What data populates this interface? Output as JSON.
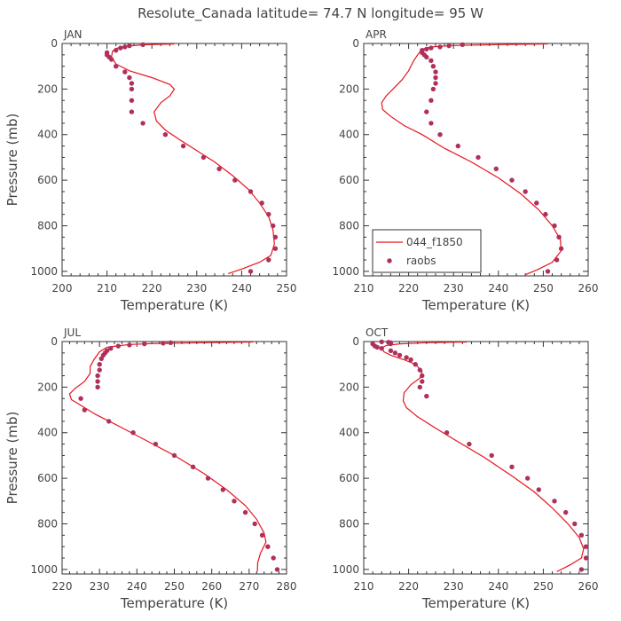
{
  "title": "Resolute_Canada  latitude= 74.7 N longitude= 95 W",
  "colors": {
    "model": "#e8141c",
    "obs": "#b0305c",
    "axes": "#333333",
    "text": "#444444"
  },
  "legend": {
    "model_label": "044_f1850",
    "obs_label": "raobs"
  },
  "chart_data": [
    {
      "type": "line",
      "panel": "JAN",
      "xlabel": "Temperature (K)",
      "ylabel": "Pressure (mb)",
      "xlim": [
        200,
        250
      ],
      "ylim": [
        1020,
        0
      ],
      "xticks": [
        200,
        210,
        220,
        230,
        240,
        250
      ],
      "yticks": [
        0,
        200,
        400,
        600,
        800,
        1000
      ],
      "series": [
        {
          "name": "044_f1850",
          "style": "line",
          "points": [
            [
              225,
              2
            ],
            [
              218,
              6
            ],
            [
              214,
              12
            ],
            [
              212,
              22
            ],
            [
              211.2,
              35
            ],
            [
              211,
              60
            ],
            [
              212,
              90
            ],
            [
              215,
              120
            ],
            [
              220,
              150
            ],
            [
              224,
              180
            ],
            [
              225,
              200
            ],
            [
              224,
              230
            ],
            [
              222,
              260
            ],
            [
              220.5,
              300
            ],
            [
              221,
              340
            ],
            [
              223,
              380
            ],
            [
              226,
              420
            ],
            [
              230,
              470
            ],
            [
              234,
              520
            ],
            [
              238,
              580
            ],
            [
              241.5,
              640
            ],
            [
              244,
              700
            ],
            [
              246,
              760
            ],
            [
              247,
              820
            ],
            [
              247.3,
              880
            ],
            [
              246.5,
              930
            ],
            [
              244,
              960
            ],
            [
              240,
              990
            ],
            [
              237,
              1010
            ]
          ]
        },
        {
          "name": "raobs",
          "style": "marker",
          "points": [
            [
              218,
              5
            ],
            [
              215,
              10
            ],
            [
              214,
              15
            ],
            [
              213,
              20
            ],
            [
              212,
              30
            ],
            [
              210,
              50
            ],
            [
              210,
              40
            ],
            [
              210.5,
              60
            ],
            [
              211,
              70
            ],
            [
              212,
              100
            ],
            [
              214,
              125
            ],
            [
              215,
              150
            ],
            [
              215.5,
              175
            ],
            [
              215.5,
              200
            ],
            [
              215.5,
              250
            ],
            [
              215.5,
              300
            ],
            [
              218,
              350
            ],
            [
              223,
              400
            ],
            [
              227,
              450
            ],
            [
              231.5,
              500
            ],
            [
              235,
              550
            ],
            [
              238.5,
              600
            ],
            [
              242,
              650
            ],
            [
              244.5,
              700
            ],
            [
              246,
              750
            ],
            [
              247,
              800
            ],
            [
              247.5,
              850
            ],
            [
              247.5,
              900
            ],
            [
              246,
              950
            ],
            [
              242,
              1000
            ]
          ]
        }
      ]
    },
    {
      "type": "line",
      "panel": "APR",
      "xlabel": "Temperature (K)",
      "ylabel": "",
      "xlim": [
        210,
        260
      ],
      "ylim": [
        1020,
        0
      ],
      "xticks": [
        210,
        220,
        230,
        240,
        250,
        260
      ],
      "yticks": [
        0,
        200,
        400,
        600,
        800,
        1000
      ],
      "legend": "lower-left",
      "series": [
        {
          "name": "044_f1850",
          "style": "line",
          "points": [
            [
              251,
              2
            ],
            [
              240,
              5
            ],
            [
              230,
              9
            ],
            [
              225,
              15
            ],
            [
              223,
              25
            ],
            [
              222,
              50
            ],
            [
              221,
              80
            ],
            [
              220,
              120
            ],
            [
              218.5,
              160
            ],
            [
              216.5,
              200
            ],
            [
              215,
              230
            ],
            [
              214,
              260
            ],
            [
              214.2,
              290
            ],
            [
              216,
              320
            ],
            [
              219,
              360
            ],
            [
              223,
              400
            ],
            [
              228,
              460
            ],
            [
              234,
              520
            ],
            [
              240,
              590
            ],
            [
              245,
              660
            ],
            [
              249,
              730
            ],
            [
              252,
              800
            ],
            [
              253.8,
              860
            ],
            [
              254,
              910
            ],
            [
              252,
              960
            ],
            [
              249,
              990
            ],
            [
              246,
              1015
            ]
          ]
        },
        {
          "name": "raobs",
          "style": "marker",
          "points": [
            [
              232,
              5
            ],
            [
              229,
              10
            ],
            [
              227,
              15
            ],
            [
              225,
              20
            ],
            [
              224,
              25
            ],
            [
              223,
              30
            ],
            [
              223,
              40
            ],
            [
              223.5,
              50
            ],
            [
              224,
              60
            ],
            [
              225,
              75
            ],
            [
              225.5,
              100
            ],
            [
              226,
              125
            ],
            [
              226,
              150
            ],
            [
              226,
              175
            ],
            [
              225.5,
              200
            ],
            [
              225,
              250
            ],
            [
              225,
              350
            ],
            [
              224,
              300
            ],
            [
              227,
              400
            ],
            [
              231,
              450
            ],
            [
              235.5,
              500
            ],
            [
              239.5,
              550
            ],
            [
              243,
              600
            ],
            [
              246,
              650
            ],
            [
              248.5,
              700
            ],
            [
              250.5,
              750
            ],
            [
              252.5,
              800
            ],
            [
              253.5,
              850
            ],
            [
              254,
              900
            ],
            [
              253,
              950
            ],
            [
              251,
              1000
            ]
          ]
        }
      ]
    },
    {
      "type": "line",
      "panel": "JUL",
      "xlabel": "Temperature (K)",
      "ylabel": "Pressure (mb)",
      "xlim": [
        220,
        280
      ],
      "ylim": [
        1020,
        0
      ],
      "xticks": [
        220,
        230,
        240,
        250,
        260,
        270,
        280
      ],
      "yticks": [
        0,
        200,
        400,
        600,
        800,
        1000
      ],
      "series": [
        {
          "name": "044_f1850",
          "style": "line",
          "points": [
            [
              271,
              2
            ],
            [
              258,
              5
            ],
            [
              245,
              8
            ],
            [
              238,
              13
            ],
            [
              232,
              25
            ],
            [
              230,
              45
            ],
            [
              228.5,
              80
            ],
            [
              227.5,
              110
            ],
            [
              227.5,
              140
            ],
            [
              226,
              175
            ],
            [
              223.5,
              205
            ],
            [
              222,
              230
            ],
            [
              222.5,
              255
            ],
            [
              225,
              280
            ],
            [
              229,
              320
            ],
            [
              235,
              370
            ],
            [
              242,
              430
            ],
            [
              250,
              500
            ],
            [
              258,
              580
            ],
            [
              264,
              650
            ],
            [
              269,
              720
            ],
            [
              272,
              780
            ],
            [
              274,
              840
            ],
            [
              274.5,
              880
            ],
            [
              273,
              930
            ],
            [
              272.3,
              970
            ],
            [
              272.2,
              1010
            ]
          ]
        },
        {
          "name": "raobs",
          "style": "marker",
          "points": [
            [
              249,
              5
            ],
            [
              247,
              7
            ],
            [
              242,
              10
            ],
            [
              238,
              15
            ],
            [
              235,
              20
            ],
            [
              233,
              30
            ],
            [
              232,
              40
            ],
            [
              231.5,
              50
            ],
            [
              231,
              60
            ],
            [
              230.5,
              75
            ],
            [
              230,
              100
            ],
            [
              230,
              125
            ],
            [
              229.5,
              150
            ],
            [
              229.5,
              175
            ],
            [
              229.5,
              200
            ],
            [
              225,
              250
            ],
            [
              226,
              300
            ],
            [
              232.5,
              350
            ],
            [
              239,
              400
            ],
            [
              245,
              450
            ],
            [
              250,
              500
            ],
            [
              255,
              550
            ],
            [
              259,
              600
            ],
            [
              263,
              650
            ],
            [
              266,
              700
            ],
            [
              269,
              750
            ],
            [
              271.5,
              800
            ],
            [
              273.5,
              850
            ],
            [
              275,
              900
            ],
            [
              276.5,
              950
            ],
            [
              277.5,
              1000
            ]
          ]
        }
      ]
    },
    {
      "type": "line",
      "panel": "OCT",
      "xlabel": "Temperature (K)",
      "ylabel": "",
      "xlim": [
        210,
        260
      ],
      "ylim": [
        1020,
        0
      ],
      "xticks": [
        210,
        220,
        230,
        240,
        250,
        260
      ],
      "yticks": [
        0,
        200,
        400,
        600,
        800,
        1000
      ],
      "series": [
        {
          "name": "044_f1850",
          "style": "line",
          "points": [
            [
              233,
              2
            ],
            [
              224,
              5
            ],
            [
              218,
              10
            ],
            [
              215,
              17
            ],
            [
              214,
              28
            ],
            [
              214.5,
              45
            ],
            [
              216,
              60
            ],
            [
              219,
              80
            ],
            [
              221.5,
              100
            ],
            [
              223,
              130
            ],
            [
              222.5,
              160
            ],
            [
              220.5,
              190
            ],
            [
              219,
              225
            ],
            [
              218.8,
              260
            ],
            [
              219.5,
              290
            ],
            [
              222,
              330
            ],
            [
              226,
              380
            ],
            [
              231,
              440
            ],
            [
              237,
              510
            ],
            [
              243,
              590
            ],
            [
              248,
              660
            ],
            [
              252,
              730
            ],
            [
              255.5,
              800
            ],
            [
              258,
              860
            ],
            [
              259,
              910
            ],
            [
              258.5,
              950
            ],
            [
              256,
              980
            ],
            [
              253,
              1010
            ]
          ]
        },
        {
          "name": "raobs",
          "style": "marker",
          "points": [
            [
              214,
              1
            ],
            [
              215.5,
              3
            ],
            [
              216,
              5
            ],
            [
              216,
              10
            ],
            [
              212,
              10
            ],
            [
              212.5,
              20
            ],
            [
              213,
              25
            ],
            [
              214,
              30
            ],
            [
              216,
              40
            ],
            [
              217,
              50
            ],
            [
              218,
              60
            ],
            [
              219.5,
              70
            ],
            [
              220.5,
              80
            ],
            [
              221.5,
              100
            ],
            [
              222.5,
              125
            ],
            [
              223,
              150
            ],
            [
              223,
              175
            ],
            [
              222.5,
              200
            ],
            [
              224,
              240
            ],
            [
              228.5,
              400
            ],
            [
              233.5,
              450
            ],
            [
              238.5,
              500
            ],
            [
              243,
              550
            ],
            [
              246.5,
              600
            ],
            [
              249,
              650
            ],
            [
              252.5,
              700
            ],
            [
              255,
              750
            ],
            [
              257,
              800
            ],
            [
              258.5,
              850
            ],
            [
              259.5,
              900
            ],
            [
              259.5,
              950
            ],
            [
              258.5,
              1000
            ]
          ]
        }
      ]
    }
  ]
}
